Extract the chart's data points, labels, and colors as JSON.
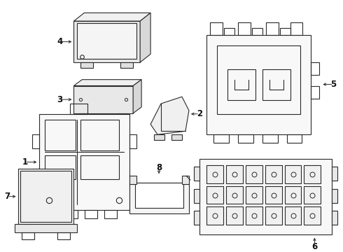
{
  "bg_color": "#ffffff",
  "line_color": "#2a2a2a",
  "line_width": 0.8,
  "label_fontsize": 8.5,
  "label_color": "#111111",
  "figsize": [
    4.9,
    3.6
  ],
  "dpi": 100
}
